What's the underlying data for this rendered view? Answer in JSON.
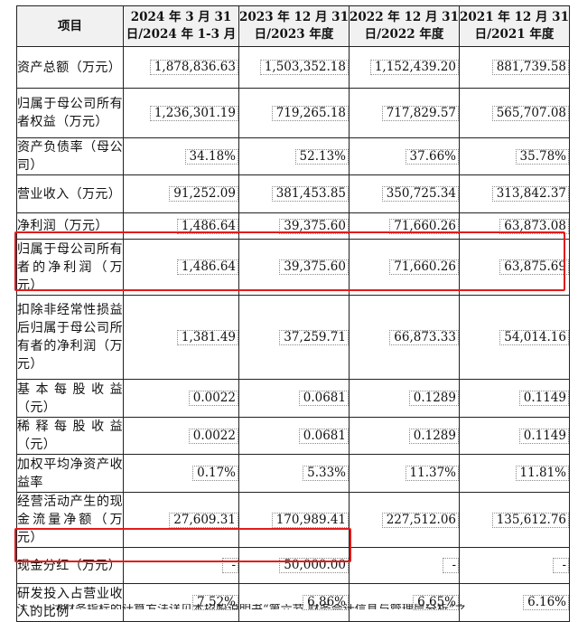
{
  "table": {
    "headers": [
      "项目",
      "2024 年 3 月 31 日/2024 年 1-3 月",
      "2023 年 12 月 31 日/2023 年度",
      "2022 年 12 月 31 日/2022 年度",
      "2021 年 12 月 31 日/2021 年度"
    ],
    "rows": [
      {
        "label": "资产总额（万元）",
        "values": [
          "1,878,836.63",
          "1,503,352.18",
          "1,152,439.20",
          "881,739.58"
        ]
      },
      {
        "label": "归属于母公司所有者权益（万元）",
        "values": [
          "1,236,301.19",
          "719,265.18",
          "717,829.57",
          "565,707.08"
        ]
      },
      {
        "label": "资产负债率（母公司）",
        "values": [
          "34.18%",
          "52.13%",
          "37.66%",
          "35.78%"
        ]
      },
      {
        "label": "营业收入（万元）",
        "values": [
          "91,252.09",
          "381,453.85",
          "350,725.34",
          "313,842.37"
        ]
      },
      {
        "label": "净利润（万元）",
        "values": [
          "1,486.64",
          "39,375.60",
          "71,660.26",
          "63,873.08"
        ]
      },
      {
        "label": "归属于母公司所有者的净利润（万元）",
        "values": [
          "1,486.64",
          "39,375.60",
          "71,660.26",
          "63,875.69"
        ]
      },
      {
        "label": "扣除非经常性损益后归属于母公司所有者的净利润（万元）",
        "values": [
          "1,381.49",
          "37,259.71",
          "66,873.33",
          "54,014.16"
        ]
      },
      {
        "label": "基本每股收益（元）",
        "values": [
          "0.0022",
          "0.0681",
          "0.1289",
          "0.1149"
        ]
      },
      {
        "label": "稀释每股收益（元）",
        "values": [
          "0.0022",
          "0.0681",
          "0.1289",
          "0.1149"
        ]
      },
      {
        "label": "加权平均净资产收益率",
        "values": [
          "0.17%",
          "5.33%",
          "11.37%",
          "11.81%"
        ]
      },
      {
        "label": "经营活动产生的现金流量净额（万元）",
        "values": [
          "27,609.31",
          "170,989.41",
          "227,512.06",
          "135,612.76"
        ]
      },
      {
        "label": "现金分红（万元）",
        "values": [
          "-",
          "50,000.00",
          "-",
          "-"
        ]
      },
      {
        "label": "研发投入占营业收入的比例",
        "values": [
          "7.52%",
          "6.86%",
          "6.65%",
          "6.16%"
        ]
      }
    ]
  },
  "footnote": "注：上述财务指标的计算方法详见本招股说明书“第六节 财务会计信息与管理层分析”之",
  "colors": {
    "highlight": "#e21b1b",
    "header_bg": "#f1f1f1",
    "border": "#222222"
  }
}
